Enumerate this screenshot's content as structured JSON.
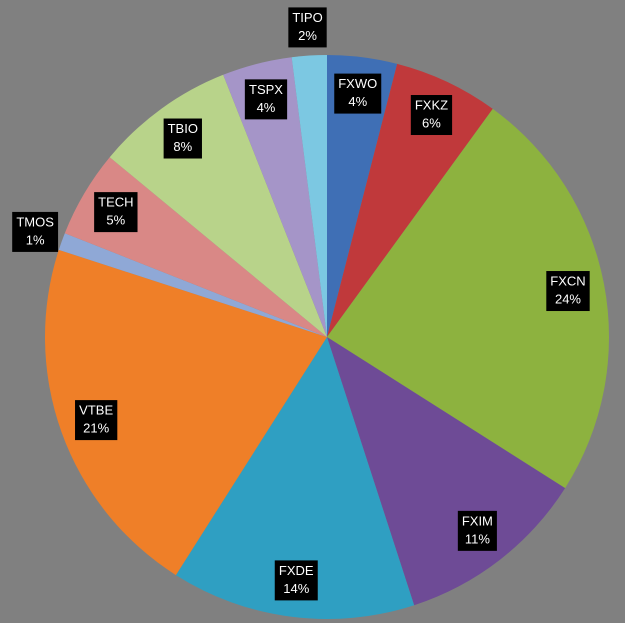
{
  "chart_data": {
    "type": "pie",
    "categories": [
      "FXWO",
      "FXKZ",
      "FXCN",
      "FXIM",
      "FXDE",
      "VTBE",
      "TMOS",
      "TECH",
      "TBIO",
      "TSPX",
      "TIPO"
    ],
    "values": [
      4,
      6,
      24,
      11,
      14,
      21,
      1,
      5,
      8,
      4,
      2
    ],
    "value_labels": [
      "4%",
      "6%",
      "24%",
      "11%",
      "14%",
      "21%",
      "1%",
      "5%",
      "8%",
      "4%",
      "2%"
    ],
    "colors": [
      "#3f6fb5",
      "#c0393b",
      "#8db23f",
      "#6e4b96",
      "#2f9fc2",
      "#ef7f28",
      "#8fa8d6",
      "#d98886",
      "#b8d38a",
      "#a595c8",
      "#7cc8e2"
    ]
  }
}
